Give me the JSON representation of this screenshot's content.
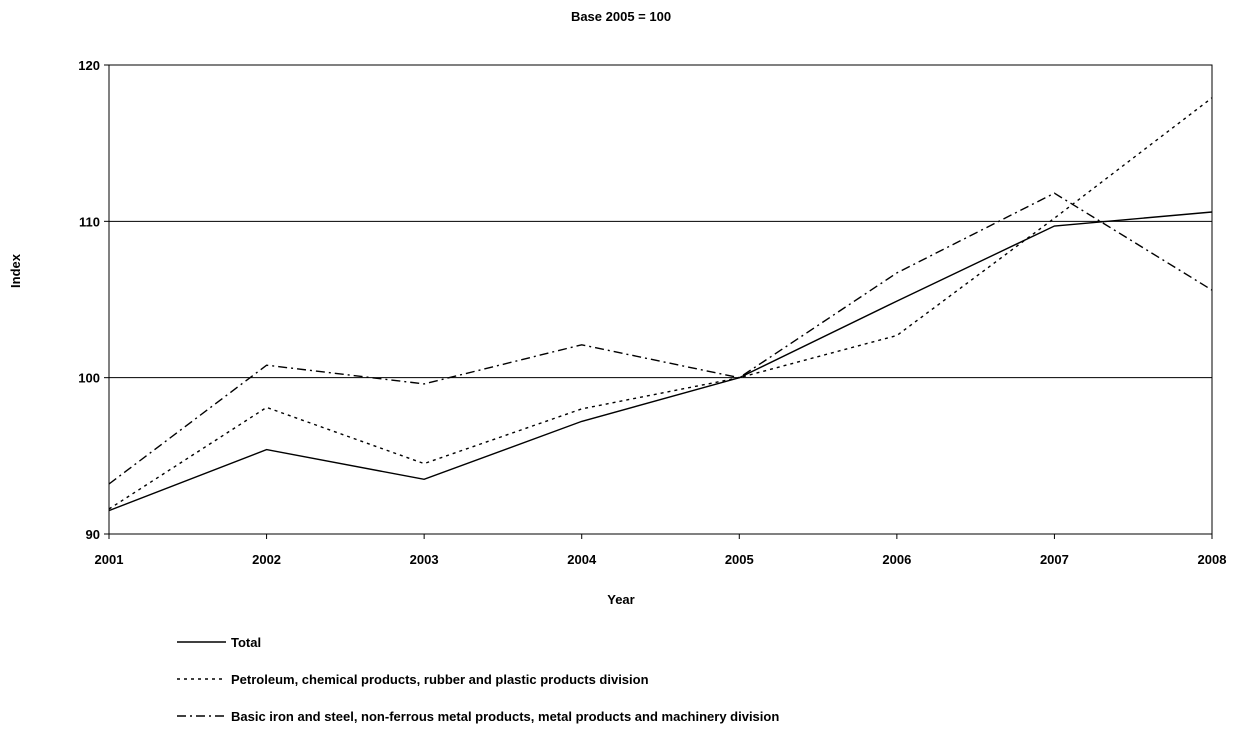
{
  "chart_data": {
    "type": "line",
    "title": "Base 2005 = 100",
    "xlabel": "Year",
    "ylabel": "Index",
    "categories": [
      "2001",
      "2002",
      "2003",
      "2004",
      "2005",
      "2006",
      "2007",
      "2008"
    ],
    "ylim": [
      90,
      120
    ],
    "yticks": [
      90,
      100,
      110,
      120
    ],
    "grid": "horizontal at 100 and 110",
    "legend_position": "bottom",
    "series": [
      {
        "name": "Total",
        "style": "solid",
        "values": [
          91.5,
          95.4,
          93.5,
          97.2,
          100.0,
          104.9,
          109.7,
          110.6
        ]
      },
      {
        "name": "Petroleum, chemical products, rubber and plastic products division",
        "style": "dotted",
        "values": [
          91.6,
          98.1,
          94.5,
          98.0,
          100.0,
          102.7,
          110.2,
          117.9
        ]
      },
      {
        "name": "Basic iron and steel, non-ferrous metal products, metal products and machinery division",
        "style": "dash-dot",
        "values": [
          93.2,
          100.8,
          99.6,
          102.1,
          100.0,
          106.7,
          111.8,
          105.6
        ]
      }
    ]
  }
}
